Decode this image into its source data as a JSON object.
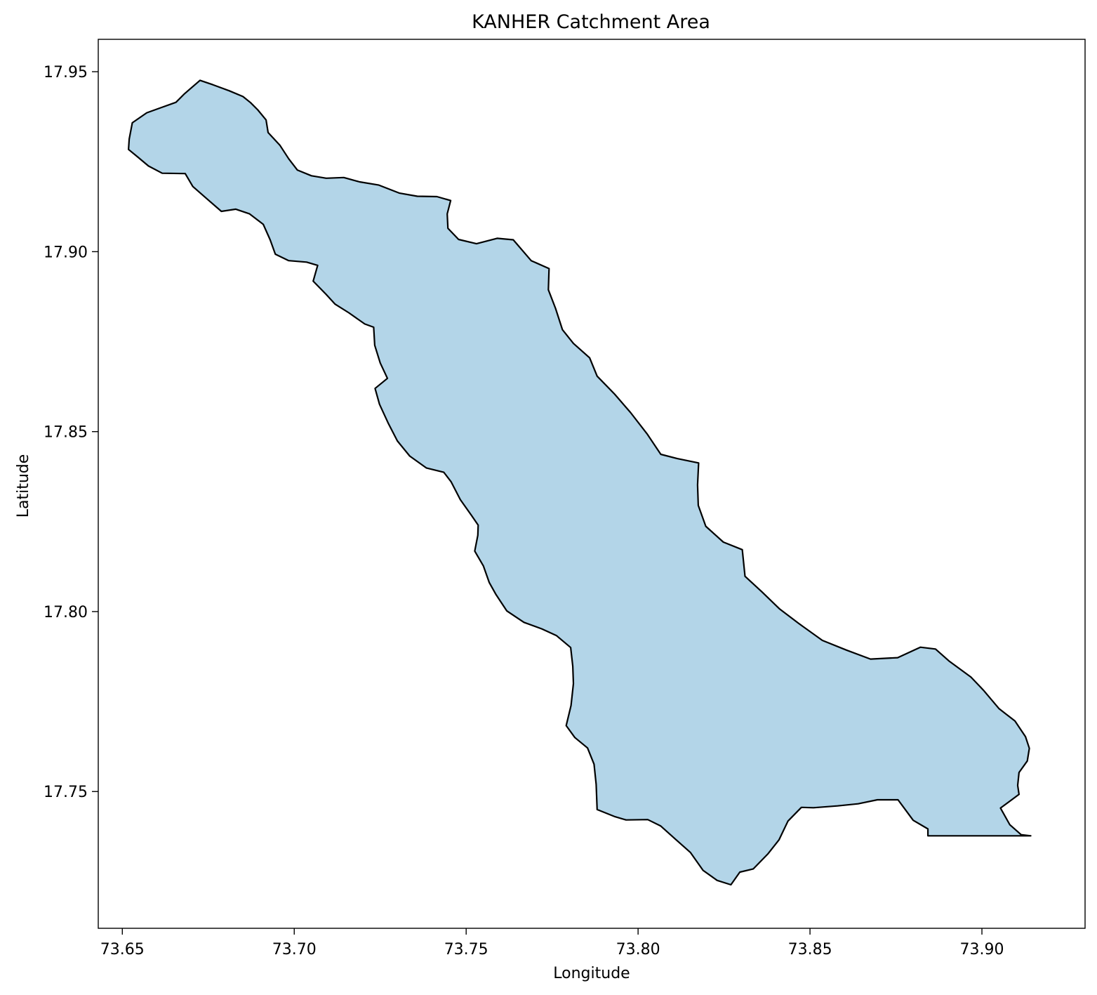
{
  "chart_data": {
    "type": "map",
    "title": "KANHER Catchment Area",
    "xlabel": "Longitude",
    "ylabel": "Latitude",
    "xlim": [
      73.643,
      73.93
    ],
    "ylim": [
      17.712,
      17.959
    ],
    "x_ticks": [
      {
        "value": 73.65,
        "label": "73.65"
      },
      {
        "value": 73.7,
        "label": "73.70"
      },
      {
        "value": 73.75,
        "label": "73.75"
      },
      {
        "value": 73.8,
        "label": "73.80"
      },
      {
        "value": 73.85,
        "label": "73.85"
      },
      {
        "value": 73.9,
        "label": "73.90"
      }
    ],
    "y_ticks": [
      {
        "value": 17.75,
        "label": "17.75"
      },
      {
        "value": 17.8,
        "label": "17.80"
      },
      {
        "value": 17.85,
        "label": "17.85"
      },
      {
        "value": 17.9,
        "label": "17.90"
      },
      {
        "value": 17.95,
        "label": "17.95"
      }
    ],
    "grid": false,
    "legend": "none",
    "fill_color": "#b3d5e8",
    "edge_color": "#000000",
    "catchment_boundary": [
      [
        73.6726,
        17.9476
      ],
      [
        73.6763,
        17.9464
      ],
      [
        73.6811,
        17.9447
      ],
      [
        73.6851,
        17.9431
      ],
      [
        73.6873,
        17.9414
      ],
      [
        73.6894,
        17.9394
      ],
      [
        73.6918,
        17.9366
      ],
      [
        73.6924,
        17.9331
      ],
      [
        73.6958,
        17.9296
      ],
      [
        73.6984,
        17.9258
      ],
      [
        73.7009,
        17.9227
      ],
      [
        73.705,
        17.9211
      ],
      [
        73.7093,
        17.9204
      ],
      [
        73.7144,
        17.9206
      ],
      [
        73.719,
        17.9194
      ],
      [
        73.7246,
        17.9185
      ],
      [
        73.7305,
        17.9163
      ],
      [
        73.7358,
        17.9154
      ],
      [
        73.7415,
        17.9153
      ],
      [
        73.7455,
        17.9142
      ],
      [
        73.7445,
        17.9105
      ],
      [
        73.7447,
        17.9065
      ],
      [
        73.7478,
        17.9034
      ],
      [
        73.753,
        17.9022
      ],
      [
        73.759,
        17.9037
      ],
      [
        73.7637,
        17.9033
      ],
      [
        73.7689,
        17.8975
      ],
      [
        73.7741,
        17.8953
      ],
      [
        73.7739,
        17.8894
      ],
      [
        73.776,
        17.8842
      ],
      [
        73.778,
        17.8783
      ],
      [
        73.7812,
        17.8745
      ],
      [
        73.7859,
        17.8705
      ],
      [
        73.7881,
        17.8654
      ],
      [
        73.7932,
        17.8604
      ],
      [
        73.7978,
        17.8553
      ],
      [
        73.8026,
        17.8494
      ],
      [
        73.8066,
        17.8437
      ],
      [
        73.8114,
        17.8425
      ],
      [
        73.8176,
        17.8413
      ],
      [
        73.8173,
        17.8352
      ],
      [
        73.8175,
        17.8295
      ],
      [
        73.8197,
        17.8237
      ],
      [
        73.8248,
        17.8193
      ],
      [
        73.8303,
        17.8172
      ],
      [
        73.8311,
        17.8098
      ],
      [
        73.836,
        17.8055
      ],
      [
        73.8412,
        17.8007
      ],
      [
        73.8466,
        17.7968
      ],
      [
        73.8536,
        17.792
      ],
      [
        73.8606,
        17.7893
      ],
      [
        73.8676,
        17.7868
      ],
      [
        73.8755,
        17.7872
      ],
      [
        73.8821,
        17.7901
      ],
      [
        73.8865,
        17.7896
      ],
      [
        73.8904,
        17.7863
      ],
      [
        73.8968,
        17.7818
      ],
      [
        73.9004,
        17.7782
      ],
      [
        73.905,
        17.773
      ],
      [
        73.9096,
        17.7696
      ],
      [
        73.9127,
        17.7652
      ],
      [
        73.9138,
        17.762
      ],
      [
        73.9132,
        17.7585
      ],
      [
        73.9108,
        17.7553
      ],
      [
        73.9104,
        17.7517
      ],
      [
        73.9108,
        17.7492
      ],
      [
        73.9054,
        17.7454
      ],
      [
        73.9081,
        17.7408
      ],
      [
        73.9114,
        17.738
      ],
      [
        73.9142,
        17.7377
      ],
      [
        73.8985,
        17.7377
      ],
      [
        73.8843,
        17.7377
      ],
      [
        73.8843,
        17.7396
      ],
      [
        73.88,
        17.742
      ],
      [
        73.8756,
        17.7477
      ],
      [
        73.8696,
        17.7477
      ],
      [
        73.864,
        17.7466
      ],
      [
        73.858,
        17.746
      ],
      [
        73.851,
        17.7455
      ],
      [
        73.8475,
        17.7456
      ],
      [
        73.8436,
        17.7418
      ],
      [
        73.841,
        17.7366
      ],
      [
        73.8377,
        17.7326
      ],
      [
        73.8335,
        17.7285
      ],
      [
        73.8296,
        17.7276
      ],
      [
        73.827,
        17.7241
      ],
      [
        73.823,
        17.7253
      ],
      [
        73.8189,
        17.7281
      ],
      [
        73.8152,
        17.7331
      ],
      [
        73.8107,
        17.7369
      ],
      [
        73.8066,
        17.7404
      ],
      [
        73.8028,
        17.7422
      ],
      [
        73.7965,
        17.7421
      ],
      [
        73.7933,
        17.743
      ],
      [
        73.7881,
        17.745
      ],
      [
        73.7878,
        17.752
      ],
      [
        73.7872,
        17.7576
      ],
      [
        73.7853,
        17.7621
      ],
      [
        73.7816,
        17.765
      ],
      [
        73.7791,
        17.7683
      ],
      [
        73.7805,
        17.7739
      ],
      [
        73.7812,
        17.78
      ],
      [
        73.781,
        17.7848
      ],
      [
        73.7804,
        17.79
      ],
      [
        73.7763,
        17.7933
      ],
      [
        73.772,
        17.7952
      ],
      [
        73.7668,
        17.797
      ],
      [
        73.7618,
        17.8002
      ],
      [
        73.7587,
        17.8047
      ],
      [
        73.7567,
        17.8081
      ],
      [
        73.755,
        17.8127
      ],
      [
        73.7525,
        17.8168
      ],
      [
        73.7534,
        17.8212
      ],
      [
        73.7535,
        17.824
      ],
      [
        73.7515,
        17.8268
      ],
      [
        73.7483,
        17.8311
      ],
      [
        73.7456,
        17.8361
      ],
      [
        73.7435,
        17.8387
      ],
      [
        73.7384,
        17.8399
      ],
      [
        73.7336,
        17.8432
      ],
      [
        73.73,
        17.8474
      ],
      [
        73.7274,
        17.8522
      ],
      [
        73.7248,
        17.8576
      ],
      [
        73.7235,
        17.862
      ],
      [
        73.7271,
        17.8648
      ],
      [
        73.725,
        17.8691
      ],
      [
        73.7234,
        17.874
      ],
      [
        73.7231,
        17.879
      ],
      [
        73.7205,
        17.8799
      ],
      [
        73.7159,
        17.883
      ],
      [
        73.7119,
        17.8854
      ],
      [
        73.7093,
        17.8881
      ],
      [
        73.7055,
        17.8918
      ],
      [
        73.7068,
        17.8962
      ],
      [
        73.7036,
        17.8971
      ],
      [
        73.6984,
        17.8975
      ],
      [
        73.6945,
        17.8993
      ],
      [
        73.693,
        17.9033
      ],
      [
        73.691,
        17.9076
      ],
      [
        73.687,
        17.9105
      ],
      [
        73.683,
        17.9118
      ],
      [
        73.6788,
        17.9112
      ],
      [
        73.6747,
        17.9146
      ],
      [
        73.6705,
        17.9181
      ],
      [
        73.6683,
        17.9217
      ],
      [
        73.6616,
        17.9218
      ],
      [
        73.6576,
        17.9238
      ],
      [
        73.6545,
        17.9263
      ],
      [
        73.6518,
        17.9284
      ],
      [
        73.652,
        17.9313
      ],
      [
        73.6529,
        17.9358
      ],
      [
        73.6571,
        17.9386
      ],
      [
        73.6612,
        17.94
      ],
      [
        73.6656,
        17.9415
      ],
      [
        73.6681,
        17.9439
      ],
      [
        73.6726,
        17.9476
      ]
    ]
  }
}
